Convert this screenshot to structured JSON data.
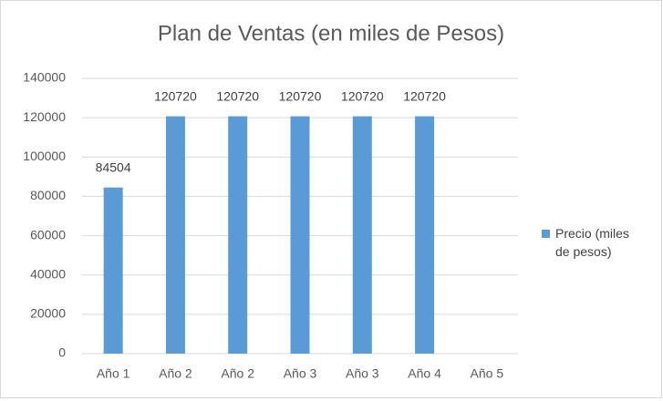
{
  "chart_data": {
    "type": "bar",
    "title": "Plan de Ventas (en miles de Pesos)",
    "categories": [
      "Año 1",
      "Año 2",
      "Año 2",
      "Año 3",
      "Año 3",
      "Año 4",
      "Año 5"
    ],
    "series": [
      {
        "name": "Precio (miles de pesos)",
        "color": "#5b9bd5",
        "values": [
          84504,
          120720,
          120720,
          120720,
          120720,
          120720,
          null
        ]
      }
    ],
    "ylim": [
      0,
      140000
    ],
    "yticks": [
      0,
      20000,
      40000,
      60000,
      80000,
      100000,
      120000,
      140000
    ],
    "grid": true,
    "legend": "right",
    "data_labels": true
  }
}
